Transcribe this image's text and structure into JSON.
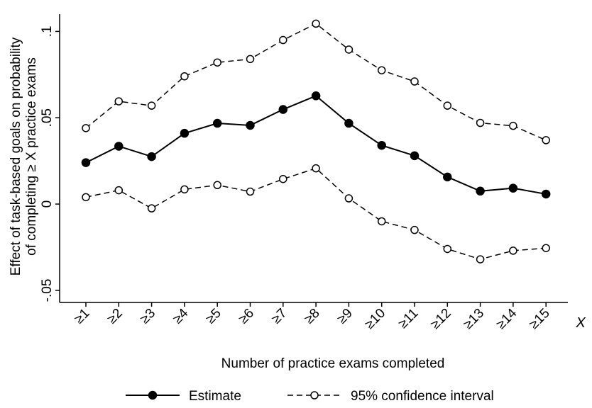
{
  "chart_data": {
    "type": "line",
    "ylabel_line1": "Effect of task-based goals on probability",
    "ylabel_line2": "of completing ≥ X practice exams",
    "xlabel": "Number of practice exams completed",
    "x_axis_end_label": "X",
    "categories": [
      "≥1",
      "≥2",
      "≥3",
      "≥4",
      "≥5",
      "≥6",
      "≥7",
      "≥8",
      "≥9",
      "≥10",
      "≥11",
      "≥12",
      "≥13",
      "≥14",
      "≥15"
    ],
    "yticks": [
      -0.05,
      0,
      0.05,
      0.1
    ],
    "ytick_labels": [
      "-.05",
      "0",
      ".05",
      ".1"
    ],
    "ylim": [
      -0.057,
      0.11
    ],
    "grid": false,
    "legend_position": "bottom-center",
    "series": [
      {
        "name": "Estimate",
        "style": "solid",
        "marker": "filled-circle",
        "values": [
          0.024,
          0.0335,
          0.0275,
          0.041,
          0.0468,
          0.0456,
          0.0548,
          0.0627,
          0.0468,
          0.034,
          0.028,
          0.0157,
          0.0075,
          0.0092,
          0.0058
        ]
      },
      {
        "name": "95% confidence interval",
        "style": "dashed",
        "marker": "hollow-circle",
        "values": [
          0.044,
          0.0595,
          0.057,
          0.074,
          0.082,
          0.084,
          0.095,
          0.1045,
          0.0895,
          0.0775,
          0.071,
          0.057,
          0.047,
          0.0453,
          0.037
        ]
      },
      {
        "name": "95% confidence interval lower",
        "style": "dashed",
        "marker": "hollow-circle",
        "show_in_legend": false,
        "values": [
          0.004,
          0.008,
          -0.0025,
          0.0085,
          0.011,
          0.0072,
          0.0145,
          0.0207,
          0.0033,
          -0.01,
          -0.015,
          -0.026,
          -0.032,
          -0.027,
          -0.0255
        ]
      }
    ],
    "colors": {
      "line": "#000000",
      "marker_fill": "#000000",
      "hollow_fill": "#ffffff"
    }
  }
}
